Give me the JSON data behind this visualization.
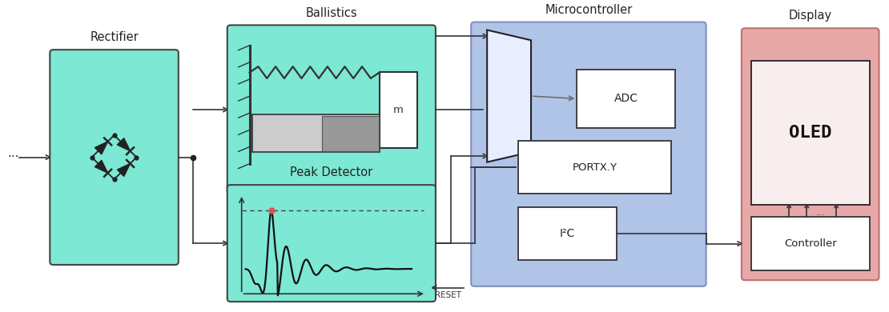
{
  "bg_color": "#ffffff",
  "teal_fill": "#7de8d4",
  "teal_edge": "#444444",
  "blue_fill": "#b0c4e8",
  "blue_edge": "#8090c0",
  "pink_fill": "#e8a8a8",
  "pink_edge": "#c07070",
  "white_fill": "#ffffff",
  "oled_screen_fill": "#f8eeee",
  "mux_fill": "#e8eeff",
  "block_labels": {
    "rectifier": "Rectifier",
    "ballistics": "Ballistics",
    "peak_detector": "Peak Detector",
    "microcontroller": "Microcontroller",
    "display": "Display"
  },
  "sub_labels": {
    "adc": "ADC",
    "portxy": "PORTX.Y",
    "i2c": "I²C",
    "oled": "OLED",
    "controller": "Controller",
    "reset": "RESET",
    "m": "m",
    "dots": "..."
  },
  "layout": {
    "rectifier": [
      0.055,
      0.15,
      0.145,
      0.7
    ],
    "ballistics": [
      0.255,
      0.38,
      0.235,
      0.55
    ],
    "peak_detector": [
      0.255,
      0.03,
      0.235,
      0.38
    ],
    "microcontroller": [
      0.53,
      0.08,
      0.265,
      0.86
    ],
    "display": [
      0.835,
      0.1,
      0.155,
      0.82
    ]
  }
}
